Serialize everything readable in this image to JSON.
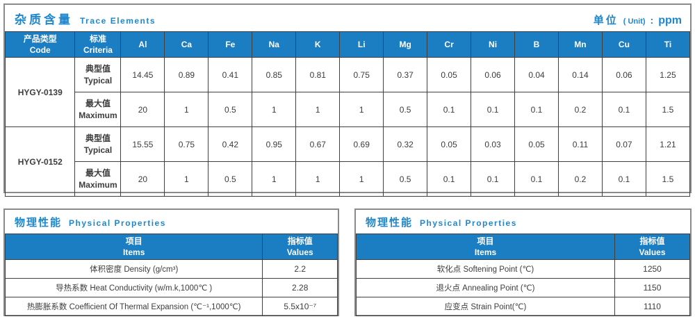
{
  "colors": {
    "header_blue": "#1b7ec3",
    "title_blue": "#1e87cd",
    "border_dark": "#3f3f3f",
    "border_outer": "#8a8a8a",
    "cell_text": "#3c3c3c"
  },
  "trace_section": {
    "title_zh": "杂质含量",
    "title_en": "Trace Elements",
    "unit_label": "单位",
    "unit_paren": "( Unit)",
    "unit_colon": ":",
    "unit_value": "ppm",
    "col_code": {
      "zh": "产品类型",
      "en": "Code"
    },
    "col_criteria": {
      "zh": "标准",
      "en": "Criteria"
    },
    "elements": [
      "Al",
      "Ca",
      "Fe",
      "Na",
      "K",
      "Li",
      "Mg",
      "Cr",
      "Ni",
      "B",
      "Mn",
      "Cu",
      "Ti"
    ],
    "products": [
      {
        "code": "HYGY-0139",
        "rows": [
          {
            "label_zh": "典型值",
            "label_en": "Typical",
            "values": [
              "14.45",
              "0.89",
              "0.41",
              "0.85",
              "0.81",
              "0.75",
              "0.37",
              "0.05",
              "0.06",
              "0.04",
              "0.14",
              "0.06",
              "1.25"
            ]
          },
          {
            "label_zh": "最大值",
            "label_en": "Maximum",
            "values": [
              "20",
              "1",
              "0.5",
              "1",
              "1",
              "1",
              "0.5",
              "0.1",
              "0.1",
              "0.1",
              "0.2",
              "0.1",
              "1.5"
            ]
          }
        ]
      },
      {
        "code": "HYGY-0152",
        "rows": [
          {
            "label_zh": "典型值",
            "label_en": "Typical",
            "values": [
              "15.55",
              "0.75",
              "0.42",
              "0.95",
              "0.67",
              "0.69",
              "0.32",
              "0.05",
              "0.03",
              "0.05",
              "0.11",
              "0.07",
              "1.21"
            ]
          },
          {
            "label_zh": "最大值",
            "label_en": "Maximum",
            "values": [
              "20",
              "1",
              "0.5",
              "1",
              "1",
              "1",
              "0.5",
              "0.1",
              "0.1",
              "0.1",
              "0.2",
              "0.1",
              "1.5"
            ]
          }
        ]
      }
    ]
  },
  "physical_left": {
    "title_zh": "物理性能",
    "title_en": "Physical Properties",
    "col_items": {
      "zh": "项目",
      "en": "Items"
    },
    "col_values": {
      "zh": "指标值",
      "en": "Values"
    },
    "rows": [
      {
        "item": "体积密度 Density (g/cm³)",
        "value": "2.2"
      },
      {
        "item": "导热系数 Heat Conductivity (w/m.k,1000℃ )",
        "value": "2.28"
      },
      {
        "item": "热膨胀系数 Coefficient Of Thermal Expansion (℃⁻¹,1000℃)",
        "value": "5.5x10⁻⁷"
      }
    ]
  },
  "physical_right": {
    "title_zh": "物理性能",
    "title_en": "Physical Properties",
    "col_items": {
      "zh": "项目",
      "en": "Items"
    },
    "col_values": {
      "zh": "指标值",
      "en": "Values"
    },
    "rows": [
      {
        "item": "软化点 Softening Point (℃)",
        "value": "1250"
      },
      {
        "item": "退火点 Annealing Point (℃)",
        "value": "1150"
      },
      {
        "item": "应变点 Strain Point(℃)",
        "value": "1110"
      }
    ]
  }
}
